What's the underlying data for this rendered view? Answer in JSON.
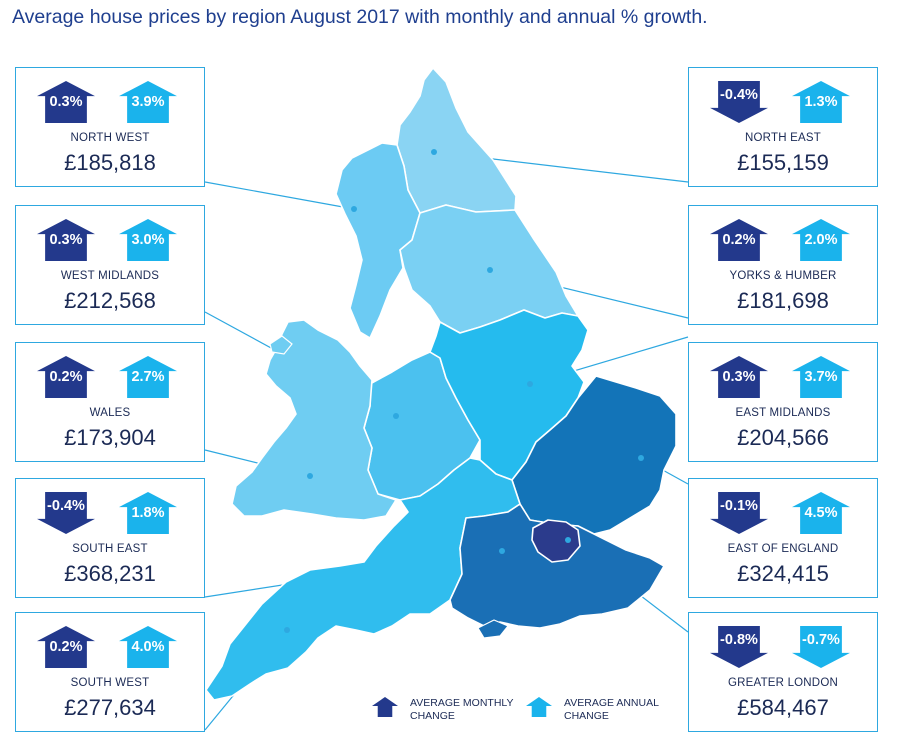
{
  "title": "Average house prices by region August 2017 with monthly and annual % growth.",
  "colors": {
    "monthly": "#23398c",
    "annual": "#1ab3ec",
    "card_border": "#2ea8e0",
    "connector": "#2ea8e0",
    "text": "#1b2a55"
  },
  "regions": {
    "north_west": {
      "name": "NORTH WEST",
      "price": "£185,818",
      "monthly": "0.3%",
      "monthly_dir": "up",
      "annual": "3.9%",
      "annual_dir": "up",
      "fill": "#6ccbf3"
    },
    "north_east": {
      "name": "NORTH EAST",
      "price": "£155,159",
      "monthly": "-0.4%",
      "monthly_dir": "down",
      "annual": "1.3%",
      "annual_dir": "up",
      "fill": "#8ad4f3"
    },
    "west_midlands": {
      "name": "WEST MIDLANDS",
      "price": "£212,568",
      "monthly": "0.3%",
      "monthly_dir": "up",
      "annual": "3.0%",
      "annual_dir": "up",
      "fill": "#4bc1ef"
    },
    "yorks_humber": {
      "name": "YORKS & HUMBER",
      "price": "£181,698",
      "monthly": "0.2%",
      "monthly_dir": "up",
      "annual": "2.0%",
      "annual_dir": "up",
      "fill": "#7ad0f3"
    },
    "wales": {
      "name": "WALES",
      "price": "£173,904",
      "monthly": "0.2%",
      "monthly_dir": "up",
      "annual": "2.7%",
      "annual_dir": "up",
      "fill": "#6fcdf2"
    },
    "east_midlands": {
      "name": "EAST MIDLANDS",
      "price": "£204,566",
      "monthly": "0.3%",
      "monthly_dir": "up",
      "annual": "3.7%",
      "annual_dir": "up",
      "fill": "#25bbee"
    },
    "south_east": {
      "name": "SOUTH EAST",
      "price": "£368,231",
      "monthly": "-0.4%",
      "monthly_dir": "down",
      "annual": "1.8%",
      "annual_dir": "up",
      "fill": "#1a6fb5"
    },
    "east_of_england": {
      "name": "EAST OF ENGLAND",
      "price": "£324,415",
      "monthly": "-0.1%",
      "monthly_dir": "down",
      "annual": "4.5%",
      "annual_dir": "up",
      "fill": "#1374b8"
    },
    "south_west": {
      "name": "SOUTH WEST",
      "price": "£277,634",
      "monthly": "0.2%",
      "monthly_dir": "up",
      "annual": "4.0%",
      "annual_dir": "up",
      "fill": "#30bdee"
    },
    "greater_london": {
      "name": "GREATER LONDON",
      "price": "£584,467",
      "monthly": "-0.8%",
      "monthly_dir": "down",
      "annual": "-0.7%",
      "annual_dir": "down",
      "fill": "#2b3b8c"
    }
  },
  "legend": {
    "monthly_label": "AVERAGE MONTHLY CHANGE",
    "annual_label": "AVERAGE ANNUAL CHANGE"
  }
}
